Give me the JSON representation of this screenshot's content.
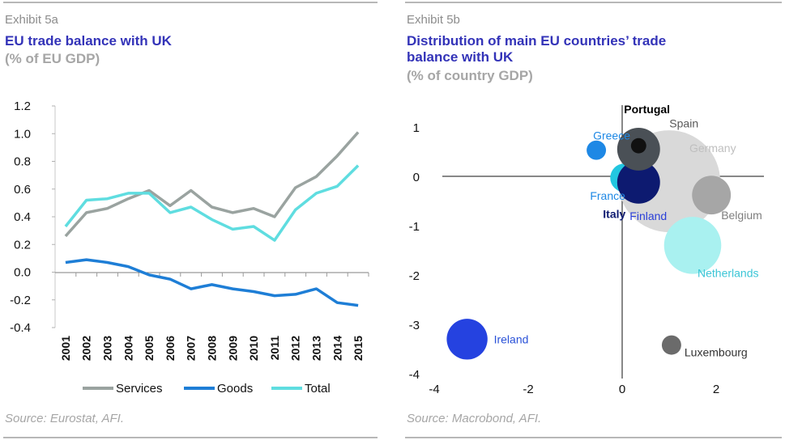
{
  "left": {
    "exhibit": "Exhibit 5a",
    "title": "EU trade balance with UK",
    "subtitle": "(% of EU GDP)",
    "source": "Source: Eurostat, AFI."
  },
  "right": {
    "exhibit": "Exhibit 5b",
    "title_line1": "Distribution of main EU countries’ trade",
    "title_line2": "balance with UK",
    "subtitle": "(% of country GDP)",
    "source": "Source: Macrobond, AFI."
  },
  "chart_data": [
    {
      "type": "line",
      "title": "EU trade balance with UK",
      "ylabel": "",
      "x": [
        "2001",
        "2002",
        "2003",
        "2004",
        "2005",
        "2006",
        "2007",
        "2008",
        "2009",
        "2010",
        "2011",
        "2012",
        "2013",
        "2014",
        "2015"
      ],
      "ylim": [
        -0.4,
        1.2
      ],
      "yticks": [
        "1.2",
        "1.0",
        "0.8",
        "0.6",
        "0.4",
        "0.2",
        "0.0",
        "-0.2",
        "-0.4"
      ],
      "legend_position": "bottom",
      "series": [
        {
          "name": "Services",
          "color": "#9aa3a0",
          "values": [
            0.26,
            0.43,
            0.46,
            0.53,
            0.59,
            0.48,
            0.59,
            0.47,
            0.43,
            0.46,
            0.4,
            0.61,
            0.69,
            0.84,
            1.01
          ]
        },
        {
          "name": "Goods",
          "color": "#1e7ed6",
          "values": [
            0.07,
            0.09,
            0.07,
            0.04,
            -0.02,
            -0.05,
            -0.12,
            -0.09,
            -0.12,
            -0.14,
            -0.17,
            -0.16,
            -0.12,
            -0.22,
            -0.24
          ]
        },
        {
          "name": "Total",
          "color": "#5fdde0",
          "values": [
            0.33,
            0.52,
            0.53,
            0.57,
            0.57,
            0.43,
            0.47,
            0.38,
            0.31,
            0.33,
            0.23,
            0.45,
            0.57,
            0.62,
            0.77
          ]
        }
      ]
    },
    {
      "type": "scatter",
      "title": "Distribution of main EU countries’ trade balance with UK",
      "xlim": [
        -4,
        3
      ],
      "ylim": [
        -4,
        1.5
      ],
      "xticks": [
        {
          "v": -4,
          "label": "-4"
        },
        {
          "v": -2,
          "label": "-2"
        },
        {
          "v": 0,
          "label": "0"
        },
        {
          "v": 2,
          "label": "2"
        }
      ],
      "yticks": [
        {
          "v": 1,
          "label": "1"
        },
        {
          "v": 0,
          "label": "0"
        },
        {
          "v": -1,
          "label": "-1"
        },
        {
          "v": -2,
          "label": "-2"
        },
        {
          "v": -3,
          "label": "-3"
        },
        {
          "v": -4,
          "label": "-4"
        }
      ],
      "points": [
        {
          "name": "Germany",
          "x": 1.0,
          "y": -0.1,
          "size": 1.0,
          "color": "#d9d9d9",
          "label_color": "#bfbfbf"
        },
        {
          "name": "Netherlands",
          "x": 1.5,
          "y": -1.4,
          "size": 0.56,
          "color": "#a9f1f0",
          "label_color": "#3bc5d6"
        },
        {
          "name": "Belgium",
          "x": 1.9,
          "y": -0.38,
          "size": 0.38,
          "color": "#a6a6a6",
          "label_color": "#7f7f7f"
        },
        {
          "name": "Ireland",
          "x": -3.3,
          "y": -3.3,
          "size": 0.4,
          "color": "#2542e0",
          "label_color": "#2a52d8"
        },
        {
          "name": "Luxembourg",
          "x": 1.05,
          "y": -3.42,
          "size": 0.19,
          "color": "#6b6b6b",
          "label_color": "#333333"
        },
        {
          "name": "Greece",
          "x": -0.55,
          "y": 0.53,
          "size": 0.19,
          "color": "#1e88e5",
          "label_color": "#1e88e5"
        },
        {
          "name": "France",
          "x": 0.05,
          "y": -0.03,
          "size": 0.28,
          "color": "#22c6e0",
          "label_color": "#1e88e5"
        },
        {
          "name": "Finland",
          "x": 0.35,
          "y": -0.33,
          "size": 0.18,
          "color": "#2a3fd8",
          "label_color": "#2a3fd8"
        },
        {
          "name": "Italy",
          "x": 0.35,
          "y": -0.12,
          "size": 0.42,
          "color": "#0d1a70",
          "label_color": "#0d1a70"
        },
        {
          "name": "Spain",
          "x": 0.35,
          "y": 0.55,
          "size": 0.42,
          "color": "#4a5056",
          "label_color": "#595959"
        },
        {
          "name": "Portugal",
          "x": 0.35,
          "y": 0.62,
          "size": 0.15,
          "color": "#111111",
          "label_color": "#000000"
        }
      ]
    }
  ]
}
